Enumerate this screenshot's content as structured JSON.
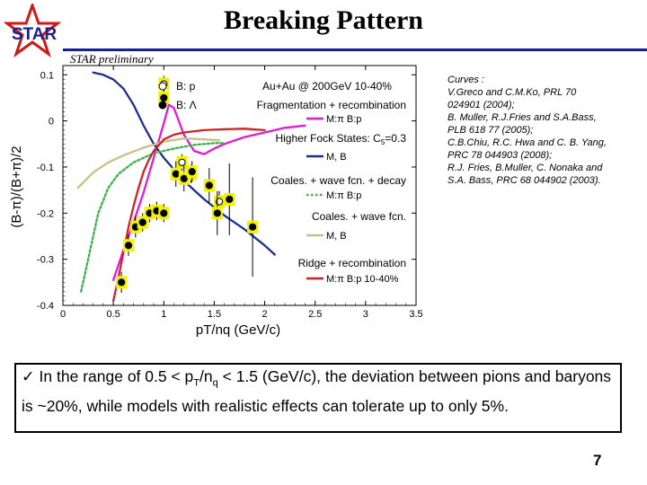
{
  "slide": {
    "title": "Breaking Pattern",
    "logo_text": "STAR",
    "preliminary": "STAR preliminary",
    "page_number": "7"
  },
  "references": [
    "Curves :",
    "V.Greco and C.M.Ko, PRL 70",
    "024901 (2004);",
    "B. Muller, R.J.Fries and S.A.Bass,",
    "PLB 618 77 (2005);",
    "C.B.Chiu, R.C. Hwa and C. B. Yang,",
    "PRC 78 044903 (2008);",
    "R.J. Fries, B.Muller, C. Nonaka and",
    "S.A. Bass, PRC 68 044902 (2003)."
  ],
  "note": {
    "check": "✓",
    "text_before": "In the range of 0.5 < p",
    "sub_t": "T",
    "slash_n": "/n",
    "sub_q": "q",
    "text_after": " < 1.5 (GeV/c), the deviation between pions and baryons is ~20%, while models with realistic effects can tolerate up to only 5%."
  },
  "colors": {
    "rule": "#1a1f8c",
    "magenta": "#e01cd8",
    "navy": "#1d2f8f",
    "green": "#3cb44b",
    "red": "#d42222",
    "tan": "#c2c28a",
    "marker_highlight": "#f2f200"
  },
  "chart_data": {
    "type": "line",
    "xlabel": "pT/nq (GeV/c)",
    "ylabel": "(B-π)/(B+π)/2",
    "xlim": [
      0,
      3.5
    ],
    "ylim": [
      -0.4,
      0.12
    ],
    "x_ticks": [
      "0",
      "0.5",
      "1",
      "1.5",
      "2",
      "2.5",
      "3",
      "3.5"
    ],
    "y_ticks": [
      "0.1",
      "0",
      "-0.1",
      "-0.2",
      "-0.3",
      "-0.4"
    ],
    "legend": {
      "markers": [
        {
          "label": "B: p",
          "style": "open"
        },
        {
          "label": "B: Λ",
          "style": "filled"
        }
      ],
      "system": "Au+Au @ 200GeV 10-40%",
      "groups": [
        {
          "heading": "Fragmentation + recombination",
          "entry": "M:π B:p",
          "color": "#e01cd8"
        },
        {
          "heading": "Higher Fock States: C",
          "sub": "5",
          "heading_suffix": "=0.3",
          "entry": "M, B",
          "color": "#1d2f8f"
        },
        {
          "heading": "Coales. + wave fcn. + decay",
          "entry": "M:π B:p",
          "color": "#3cb44b"
        },
        {
          "heading": "Coales. + wave fcn.",
          "entry": "M, B",
          "color": "#c2c28a"
        },
        {
          "heading": "Ridge + recombination",
          "entry": "M:π B:p 10-40%",
          "color": "#d42222"
        }
      ]
    },
    "series": [
      {
        "name": "Fragmentation + recombination, M:π B:p",
        "color": "#e01cd8",
        "points": [
          [
            0.5,
            -0.345
          ],
          [
            0.6,
            -0.28
          ],
          [
            0.7,
            -0.22
          ],
          [
            0.8,
            -0.155
          ],
          [
            0.9,
            -0.08
          ],
          [
            1.0,
            -0.005
          ],
          [
            1.05,
            0.035
          ],
          [
            1.1,
            0.028
          ],
          [
            1.2,
            -0.03
          ],
          [
            1.3,
            -0.065
          ],
          [
            1.4,
            -0.072
          ],
          [
            1.5,
            -0.06
          ],
          [
            1.6,
            -0.05
          ],
          [
            1.8,
            -0.035
          ],
          [
            2.0,
            -0.025
          ],
          [
            2.2,
            -0.015
          ],
          [
            2.4,
            -0.01
          ]
        ]
      },
      {
        "name": "Higher Fock States: C5=0.3, M, B",
        "color": "#1d2f8f",
        "points": [
          [
            0.3,
            0.105
          ],
          [
            0.4,
            0.1
          ],
          [
            0.5,
            0.09
          ],
          [
            0.6,
            0.07
          ],
          [
            0.7,
            0.035
          ],
          [
            0.8,
            -0.01
          ],
          [
            0.9,
            -0.05
          ],
          [
            1.0,
            -0.08
          ],
          [
            1.2,
            -0.13
          ],
          [
            1.4,
            -0.17
          ],
          [
            1.6,
            -0.205
          ],
          [
            1.8,
            -0.235
          ],
          [
            2.0,
            -0.27
          ],
          [
            2.1,
            -0.29
          ]
        ]
      },
      {
        "name": "Coales. + wave fcn. + decay, M:π B:p",
        "color": "#3cb44b",
        "dashed": true,
        "points": [
          [
            0.18,
            -0.37
          ],
          [
            0.25,
            -0.3
          ],
          [
            0.3,
            -0.25
          ],
          [
            0.35,
            -0.2
          ],
          [
            0.45,
            -0.145
          ],
          [
            0.55,
            -0.115
          ],
          [
            0.7,
            -0.09
          ],
          [
            0.9,
            -0.07
          ],
          [
            1.1,
            -0.06
          ],
          [
            1.3,
            -0.052
          ],
          [
            1.5,
            -0.048
          ],
          [
            1.6,
            -0.048
          ]
        ]
      },
      {
        "name": "Coales. + wave fcn., M, B",
        "color": "#c2c28a",
        "points": [
          [
            0.15,
            -0.145
          ],
          [
            0.3,
            -0.112
          ],
          [
            0.45,
            -0.09
          ],
          [
            0.6,
            -0.075
          ],
          [
            0.8,
            -0.058
          ],
          [
            1.0,
            -0.045
          ],
          [
            1.2,
            -0.038
          ],
          [
            1.4,
            -0.04
          ],
          [
            1.55,
            -0.042
          ]
        ]
      },
      {
        "name": "Ridge + recombination, M:π B:p 10-40%",
        "color": "#d42222",
        "points": [
          [
            0.5,
            -0.39
          ],
          [
            0.55,
            -0.34
          ],
          [
            0.6,
            -0.285
          ],
          [
            0.65,
            -0.23
          ],
          [
            0.7,
            -0.185
          ],
          [
            0.75,
            -0.145
          ],
          [
            0.8,
            -0.11
          ],
          [
            0.85,
            -0.085
          ],
          [
            0.9,
            -0.065
          ],
          [
            1.0,
            -0.04
          ],
          [
            1.1,
            -0.03
          ],
          [
            1.2,
            -0.025
          ],
          [
            1.4,
            -0.02
          ],
          [
            1.6,
            -0.018
          ],
          [
            1.8,
            -0.017
          ],
          [
            2.0,
            -0.02
          ]
        ]
      }
    ],
    "data_points": [
      {
        "species": "p",
        "x": 1.0,
        "y": 0.08,
        "err": 0.01
      },
      {
        "species": "p",
        "x": 1.18,
        "y": -0.09,
        "err": 0.01
      },
      {
        "species": "p",
        "x": 1.27,
        "y": -0.115,
        "err": 0.012
      },
      {
        "species": "p",
        "x": 1.55,
        "y": -0.175,
        "err": 0.015
      },
      {
        "species": "Λ",
        "x": 1.0,
        "y": 0.05,
        "err": 0.01
      },
      {
        "species": "Λ",
        "x": 0.58,
        "y": -0.35,
        "err": 0.015
      },
      {
        "species": "Λ",
        "x": 0.65,
        "y": -0.27,
        "err": 0.015
      },
      {
        "species": "Λ",
        "x": 0.72,
        "y": -0.23,
        "err": 0.015
      },
      {
        "species": "Λ",
        "x": 0.79,
        "y": -0.22,
        "err": 0.012
      },
      {
        "species": "Λ",
        "x": 0.86,
        "y": -0.2,
        "err": 0.012
      },
      {
        "species": "Λ",
        "x": 0.93,
        "y": -0.195,
        "err": 0.012
      },
      {
        "species": "Λ",
        "x": 1.0,
        "y": -0.2,
        "err": 0.012
      },
      {
        "species": "Λ",
        "x": 1.12,
        "y": -0.115,
        "err": 0.02
      },
      {
        "species": "Λ",
        "x": 1.2,
        "y": -0.125,
        "err": 0.02
      },
      {
        "species": "Λ",
        "x": 1.28,
        "y": -0.11,
        "err": 0.015
      },
      {
        "species": "Λ",
        "x": 1.45,
        "y": -0.14,
        "err": 0.03
      },
      {
        "species": "Λ",
        "x": 1.53,
        "y": -0.2,
        "err": 0.04
      },
      {
        "species": "Λ",
        "x": 1.65,
        "y": -0.17,
        "err": 0.07
      },
      {
        "species": "Λ",
        "x": 1.88,
        "y": -0.23,
        "err": 0.1
      }
    ]
  }
}
